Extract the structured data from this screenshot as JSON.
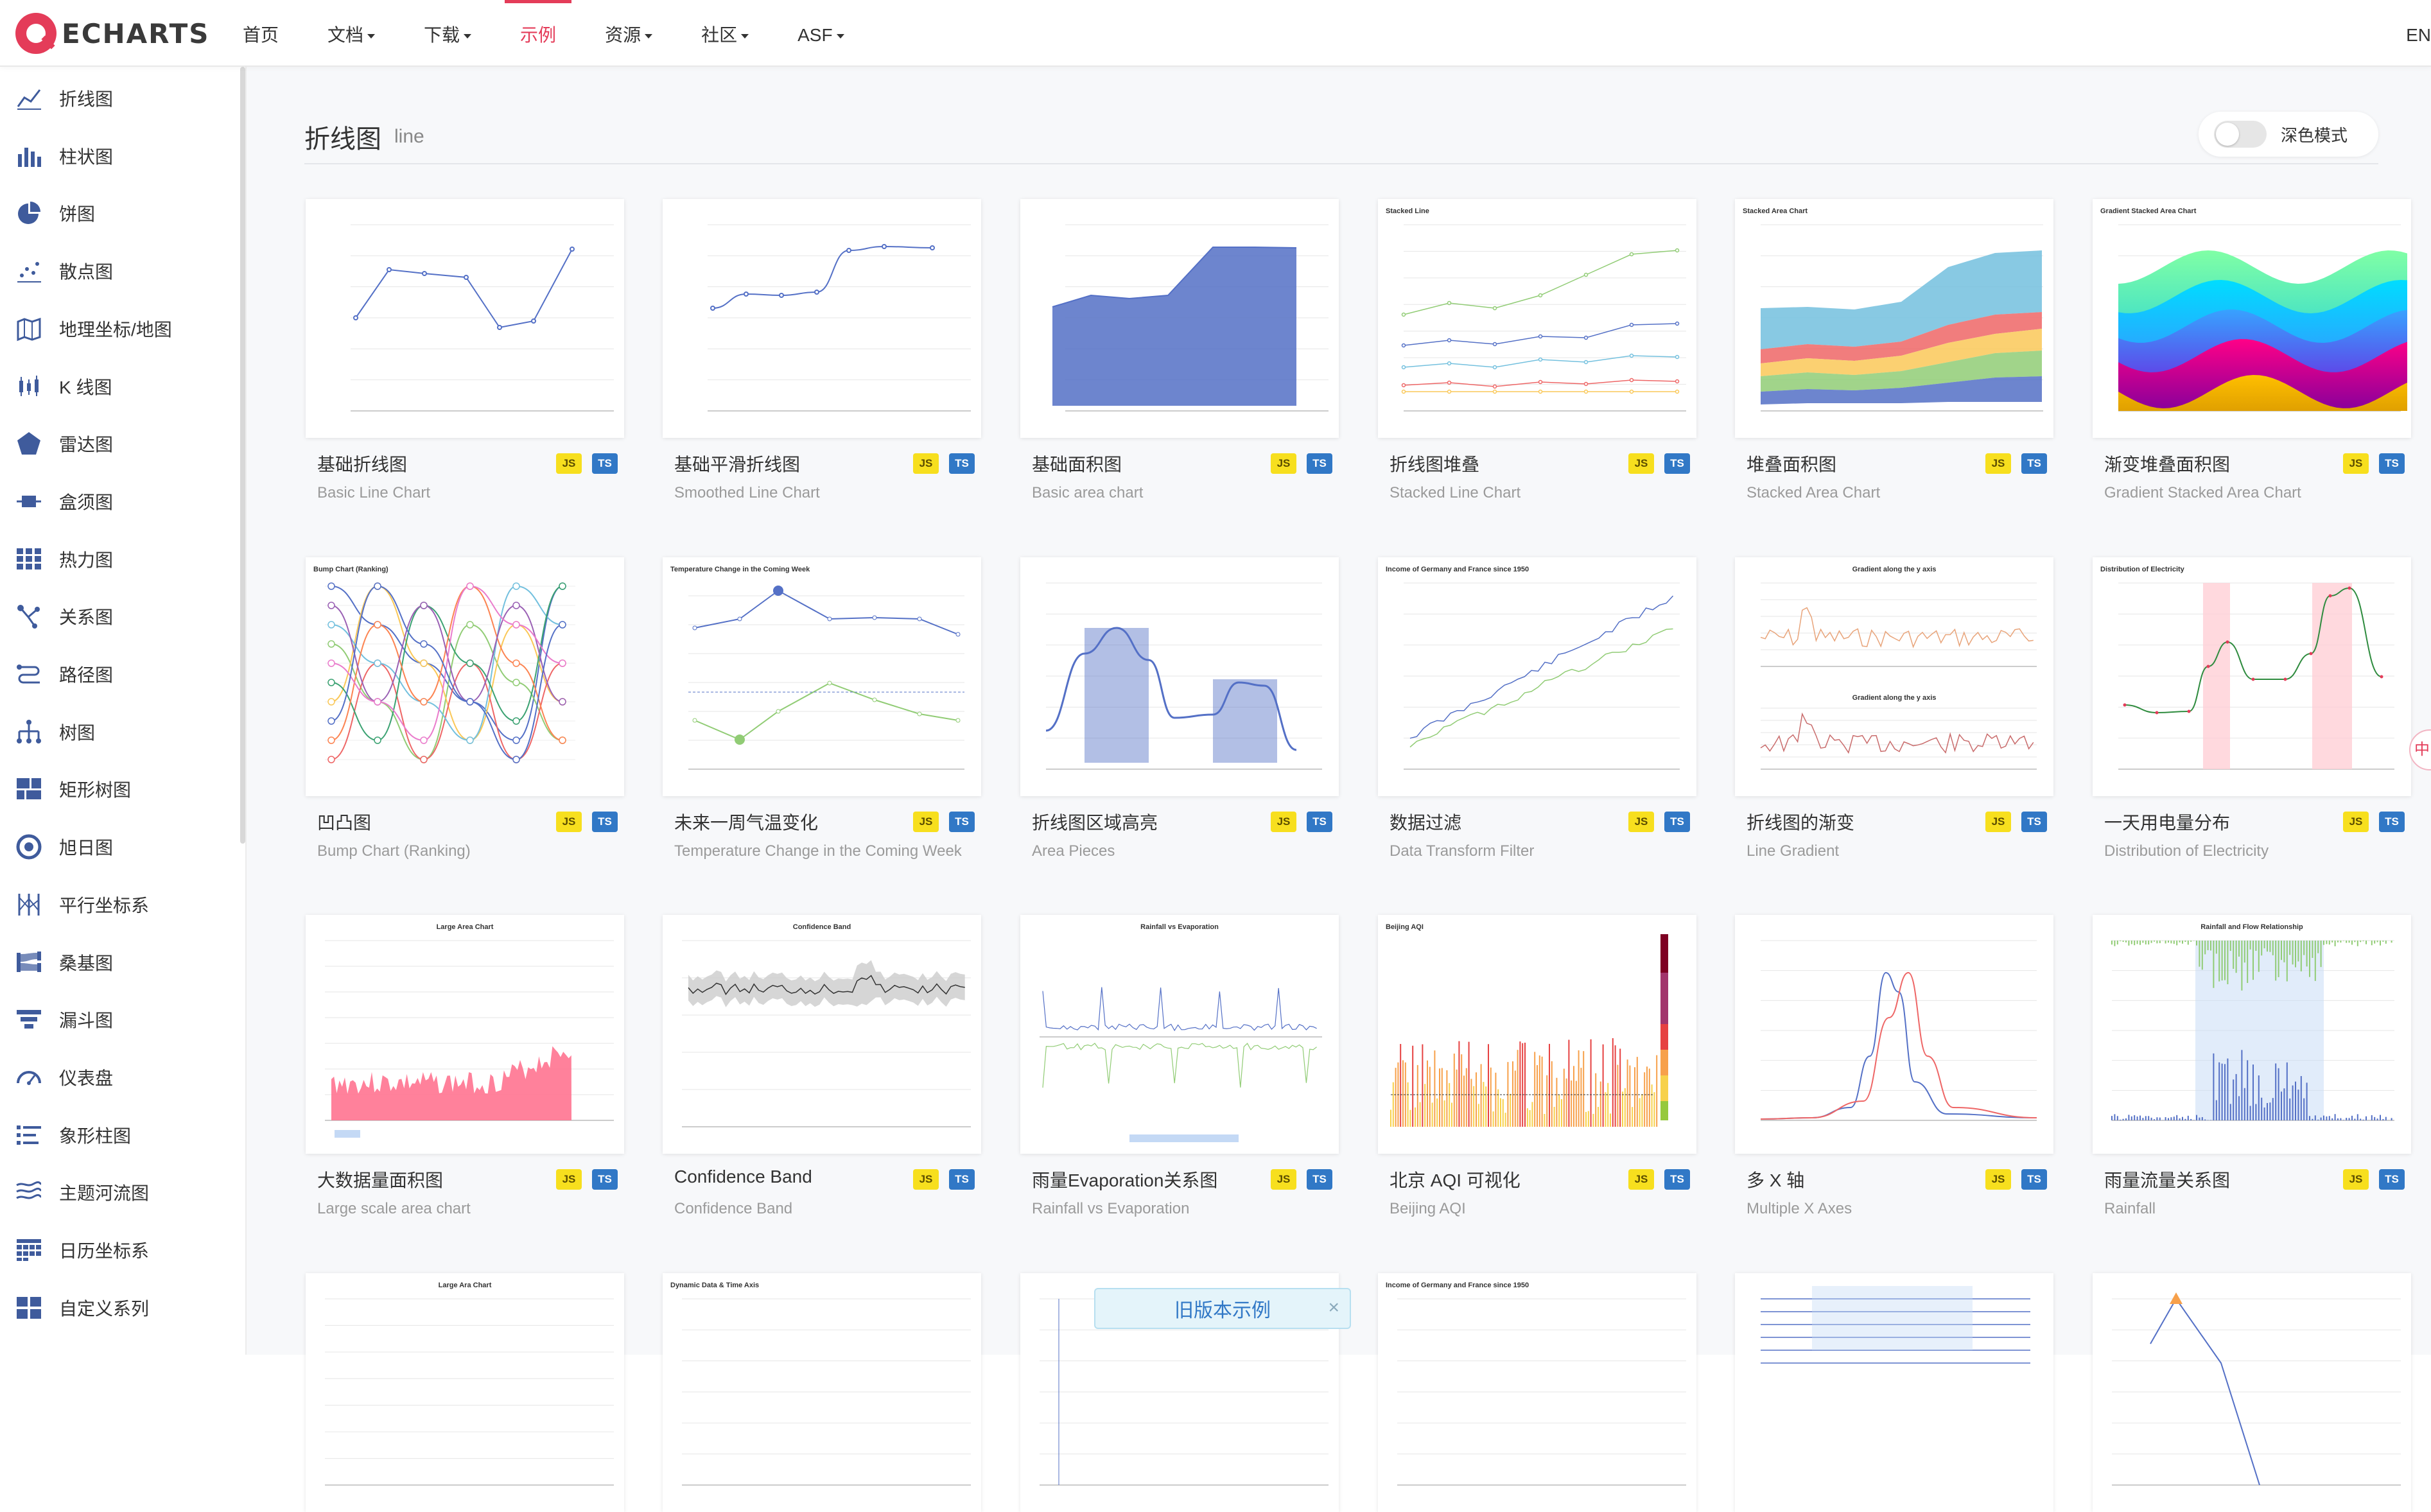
{
  "brand": {
    "name": "ECHARTS",
    "accent": "#e43c59"
  },
  "nav": {
    "items": [
      {
        "label": "首页",
        "dropdown": false
      },
      {
        "label": "文档",
        "dropdown": true
      },
      {
        "label": "下载",
        "dropdown": true
      },
      {
        "label": "示例",
        "dropdown": false,
        "active": true
      },
      {
        "label": "资源",
        "dropdown": true
      },
      {
        "label": "社区",
        "dropdown": true
      },
      {
        "label": "ASF",
        "dropdown": true
      }
    ],
    "lang": "EN"
  },
  "sidebar": {
    "items": [
      {
        "label": "折线图",
        "icon": "line-chart-icon"
      },
      {
        "label": "柱状图",
        "icon": "bar-chart-icon"
      },
      {
        "label": "饼图",
        "icon": "pie-chart-icon"
      },
      {
        "label": "散点图",
        "icon": "scatter-chart-icon"
      },
      {
        "label": "地理坐标/地图",
        "icon": "map-icon"
      },
      {
        "label": "K 线图",
        "icon": "candlestick-icon"
      },
      {
        "label": "雷达图",
        "icon": "radar-icon"
      },
      {
        "label": "盒须图",
        "icon": "boxplot-icon"
      },
      {
        "label": "热力图",
        "icon": "heatmap-icon"
      },
      {
        "label": "关系图",
        "icon": "graph-icon"
      },
      {
        "label": "路径图",
        "icon": "lines-icon"
      },
      {
        "label": "树图",
        "icon": "tree-icon"
      },
      {
        "label": "矩形树图",
        "icon": "treemap-icon"
      },
      {
        "label": "旭日图",
        "icon": "sunburst-icon"
      },
      {
        "label": "平行坐标系",
        "icon": "parallel-icon"
      },
      {
        "label": "桑基图",
        "icon": "sankey-icon"
      },
      {
        "label": "漏斗图",
        "icon": "funnel-icon"
      },
      {
        "label": "仪表盘",
        "icon": "gauge-icon"
      },
      {
        "label": "象形柱图",
        "icon": "pictorial-bar-icon"
      },
      {
        "label": "主题河流图",
        "icon": "theme-river-icon"
      },
      {
        "label": "日历坐标系",
        "icon": "calendar-icon"
      },
      {
        "label": "自定义系列",
        "icon": "custom-series-icon"
      }
    ]
  },
  "header": {
    "title": "折线图",
    "subtitle": "line",
    "dark_mode_label": "深色模式"
  },
  "badges": {
    "js": "JS",
    "ts": "TS"
  },
  "cards": [
    {
      "title": "基础折线图",
      "subtitle": "Basic Line Chart"
    },
    {
      "title": "基础平滑折线图",
      "subtitle": "Smoothed Line Chart"
    },
    {
      "title": "基础面积图",
      "subtitle": "Basic area chart"
    },
    {
      "title": "折线图堆叠",
      "subtitle": "Stacked Line Chart"
    },
    {
      "title": "堆叠面积图",
      "subtitle": "Stacked Area Chart"
    },
    {
      "title": "渐变堆叠面积图",
      "subtitle": "Gradient Stacked Area Chart"
    },
    {
      "title": "凹凸图",
      "subtitle": "Bump Chart (Ranking)"
    },
    {
      "title": "未来一周气温变化",
      "subtitle": "Temperature Change in the Coming Week"
    },
    {
      "title": "折线图区域高亮",
      "subtitle": "Area Pieces"
    },
    {
      "title": "数据过滤",
      "subtitle": "Data Transform Filter"
    },
    {
      "title": "折线图的渐变",
      "subtitle": "Line Gradient"
    },
    {
      "title": "一天用电量分布",
      "subtitle": "Distribution of Electricity"
    },
    {
      "title": "大数据量面积图",
      "subtitle": "Large scale area chart"
    },
    {
      "title": "Confidence Band",
      "subtitle": "Confidence Band"
    },
    {
      "title": "雨量Evaporation关系图",
      "subtitle": "Rainfall vs Evaporation"
    },
    {
      "title": "北京 AQI 可视化",
      "subtitle": "Beijing AQI"
    },
    {
      "title": "多 X 轴",
      "subtitle": "Multiple X Axes"
    },
    {
      "title": "雨量流量关系图",
      "subtitle": "Rainfall"
    }
  ],
  "thumb_titles": [
    "",
    "",
    "",
    "Stacked Line",
    "Stacked Area Chart",
    "Gradient Stacked Area Chart",
    "Bump Chart (Ranking)",
    "Temperature Change in the Coming Week",
    "",
    "Income of Germany and France since 1950",
    "Gradient along the y axis",
    "Distribution of Electricity",
    "Large Area Chart",
    "Confidence Band",
    "Rainfall vs Evaporation",
    "Beijing AQI",
    "",
    "Rainfall and Flow Relationship",
    "Large Ara Chart",
    "Dynamic Data & Time Axis",
    "",
    "Income of Germany and France since 1950",
    "",
    ""
  ],
  "toast": {
    "label": "旧版本示例",
    "close": "×"
  },
  "side_float": "中"
}
